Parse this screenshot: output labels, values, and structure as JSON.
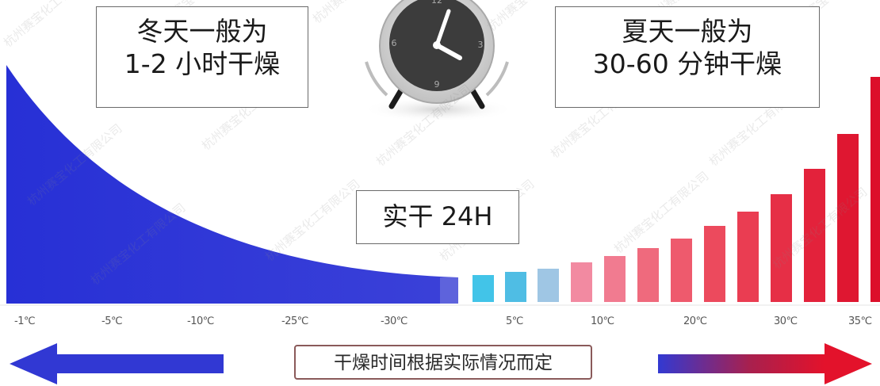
{
  "winter": {
    "line1": "冬天一般为",
    "line2": "1-2 小时干燥"
  },
  "summer": {
    "line1": "夏天一般为",
    "line2": "30-60 分钟干燥"
  },
  "drying_label": "实干 24H",
  "clock": {
    "numbers": [
      "12",
      "3",
      "6",
      "9"
    ]
  },
  "temperatures": [
    "-1℃",
    "-5℃",
    "-10℃",
    "-25℃",
    "-30℃",
    "5℃",
    "10℃",
    "20℃",
    "30℃",
    "35℃"
  ],
  "footer_note": "干燥时间根据实际情况而定",
  "watermark": "杭州赛宝化工有限公司",
  "colors": {
    "cold": "#2b35d8",
    "hot": "#e4112a",
    "cyan": "#3fc0e6",
    "text": "#1a1a1a"
  }
}
